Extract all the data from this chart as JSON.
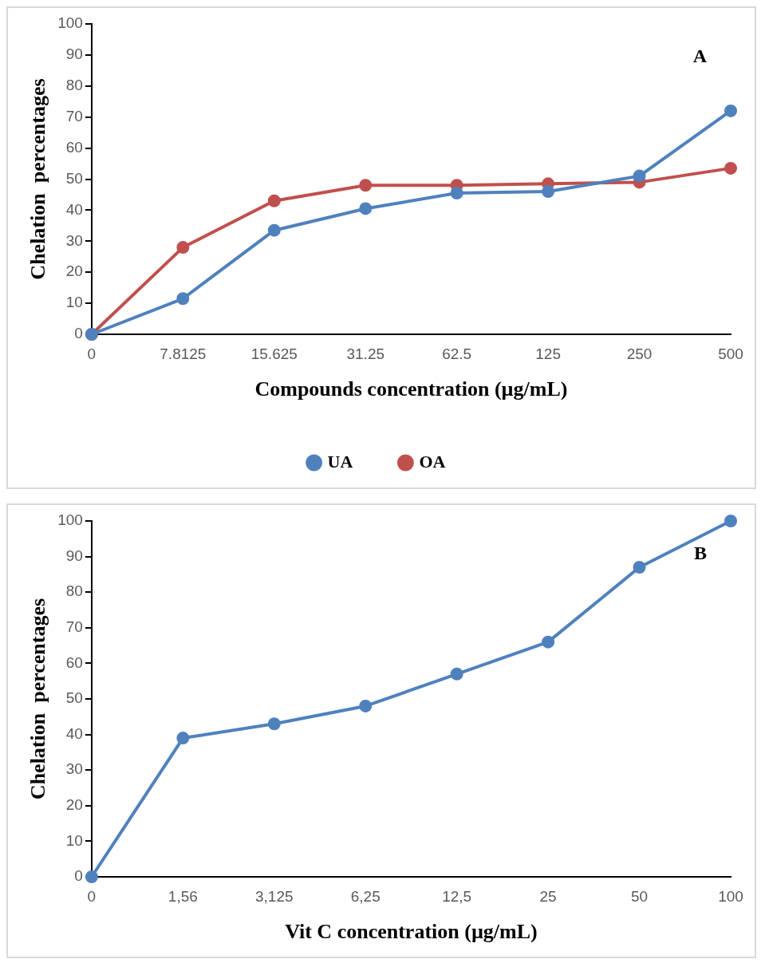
{
  "chart_data": [
    {
      "type": "line",
      "categories": [
        "0",
        "7.8125",
        "15.625",
        "31.25",
        "62.5",
        "125",
        "250",
        "500"
      ],
      "xlabel": "Compounds concentration (µg/mL)",
      "ylabel": "Chelation  percentages",
      "ylim": [
        0,
        100
      ],
      "yticks": [
        0,
        10,
        20,
        30,
        40,
        50,
        60,
        70,
        80,
        90,
        100
      ],
      "grid": false,
      "legend": "bottom",
      "marker": "circle",
      "annotations": [
        "A"
      ],
      "series": [
        {
          "name": "UA",
          "color": "#4f81bd",
          "values": [
            0,
            11.5,
            33.5,
            40.5,
            45.5,
            46,
            51,
            72
          ]
        },
        {
          "name": "OA",
          "color": "#c0504d",
          "values": [
            0,
            28,
            43,
            48,
            48,
            48.5,
            49,
            53.5
          ]
        }
      ]
    },
    {
      "type": "line",
      "categories": [
        "0",
        "1,56",
        "3,125",
        "6,25",
        "12,5",
        "25",
        "50",
        "100"
      ],
      "xlabel": "Vit C concentration (µg/mL)",
      "ylabel": "Chelation  percentages",
      "ylim": [
        0,
        100
      ],
      "yticks": [
        0,
        10,
        20,
        30,
        40,
        50,
        60,
        70,
        80,
        90,
        100
      ],
      "grid": false,
      "marker": "circle",
      "annotations": [
        "B"
      ],
      "series": [
        {
          "color": "#4f81bd",
          "values": [
            0,
            39,
            43,
            48,
            57,
            66,
            87,
            100
          ]
        }
      ]
    }
  ]
}
